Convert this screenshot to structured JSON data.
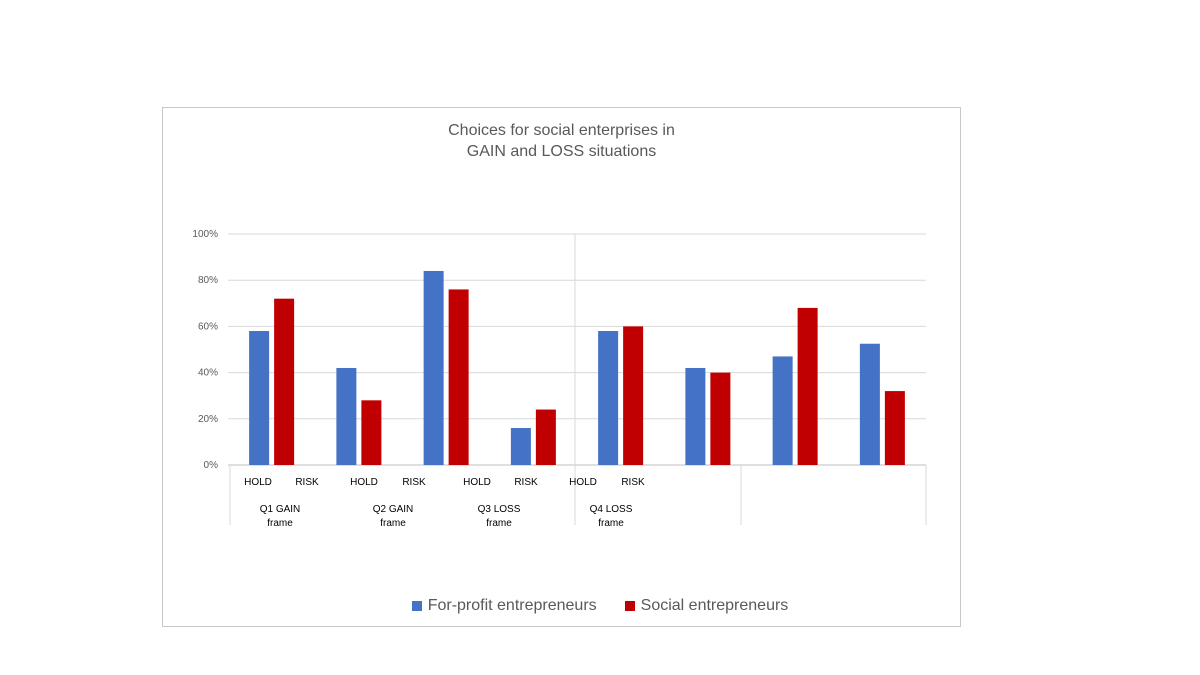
{
  "chart_data": {
    "type": "bar",
    "title_lines": [
      "Choices for social enterprises in",
      "GAIN and LOSS situations"
    ],
    "ylim": [
      0,
      1
    ],
    "y_ticks": [
      "0%",
      "20%",
      "40%",
      "60%",
      "80%",
      "100%"
    ],
    "categories": [
      "HOLD",
      "RISK",
      "HOLD",
      "RISK",
      "HOLD",
      "RISK",
      "HOLD",
      "RISK"
    ],
    "groups": [
      "Q1 GAIN frame",
      "Q2 GAIN frame",
      "Q3 LOSS frame",
      "Q4 LOSS frame"
    ],
    "series": [
      {
        "name": "For-profit entrepreneurs",
        "color": "#4472C4",
        "values": [
          0.58,
          0.42,
          0.84,
          0.16,
          0.58,
          0.42,
          0.47,
          0.525
        ]
      },
      {
        "name": "Social entrepreneurs",
        "color": "#C00000",
        "values": [
          0.72,
          0.28,
          0.76,
          0.24,
          0.6,
          0.4,
          0.68,
          0.32
        ]
      }
    ],
    "grid": true,
    "legend_position": "bottom"
  }
}
